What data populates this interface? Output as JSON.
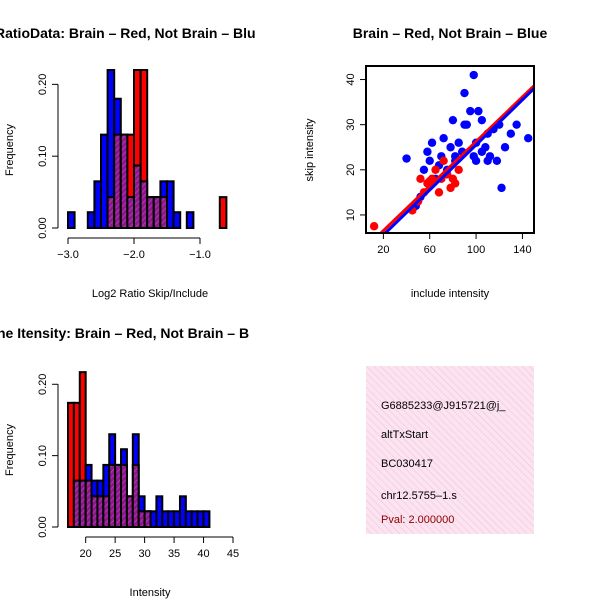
{
  "colors": {
    "red": "#ff0000",
    "blue": "#0000ff",
    "purple": "#a020f0",
    "black": "#000000",
    "pink": "#ffe4f0"
  },
  "chart_data": [
    {
      "id": "ratio-hist",
      "type": "bar",
      "title": "RatioData: Brain – Red, Not Brain – Blu",
      "xlabel": "Log2 Ratio Skip/Include",
      "ylabel": "Frequency",
      "xlim": [
        -3.0,
        -0.5
      ],
      "ylim": [
        0,
        0.22
      ],
      "xticks": [
        -3.0,
        -2.0,
        -1.0
      ],
      "xtick_labels": [
        "−3.0",
        "−2.0",
        "−1.0"
      ],
      "yticks": [
        0.0,
        0.1,
        0.2
      ],
      "ytick_labels": [
        "0.00",
        "0.10",
        "0.20"
      ],
      "bin_start": -3.0,
      "bin_width": 0.1,
      "series": [
        {
          "name": "Brain",
          "color": "red",
          "values": [
            0,
            0,
            0,
            0,
            0,
            0,
            0.043,
            0.13,
            0.13,
            0.13,
            0.22,
            0.22,
            0.043,
            0.043,
            0.043,
            0,
            0,
            0,
            0,
            0,
            0,
            0,
            0,
            0.043,
            0
          ]
        },
        {
          "name": "Not Brain",
          "color": "blue",
          "values": [
            0.022,
            0,
            0,
            0.022,
            0.065,
            0.13,
            0.22,
            0.18,
            0.13,
            0.043,
            0.087,
            0.065,
            0.043,
            0.043,
            0.065,
            0.065,
            0.022,
            0,
            0.022,
            0,
            0,
            0,
            0,
            0,
            0
          ]
        }
      ]
    },
    {
      "id": "scatter",
      "type": "scatter",
      "title": "Brain – Red, Not Brain – Blue",
      "xlabel": "include intensity",
      "ylabel": "skip intensity",
      "xlim": [
        5,
        150
      ],
      "ylim": [
        6,
        43
      ],
      "xticks": [
        20,
        60,
        100,
        140
      ],
      "xtick_labels": [
        "20",
        "60",
        "100",
        "140"
      ],
      "yticks": [
        10,
        20,
        30,
        40
      ],
      "ytick_labels": [
        "10",
        "20",
        "30",
        "40"
      ],
      "series": [
        {
          "name": "Brain",
          "color": "red",
          "x": [
            12,
            45,
            50,
            52,
            55,
            58,
            60,
            62,
            65,
            68,
            70,
            72,
            75,
            78,
            80,
            82,
            85
          ],
          "y": [
            7.5,
            11,
            13,
            18,
            15,
            17,
            17.5,
            18,
            20,
            15,
            18,
            22,
            19,
            16,
            18,
            17,
            20
          ]
        },
        {
          "name": "Not Brain",
          "color": "blue",
          "x": [
            40,
            48,
            52,
            55,
            58,
            60,
            62,
            65,
            68,
            70,
            72,
            75,
            78,
            80,
            82,
            85,
            88,
            90,
            92,
            95,
            98,
            100,
            102,
            105,
            108,
            110,
            112,
            115,
            118,
            120,
            122,
            125,
            130,
            135,
            145,
            98,
            100,
            105,
            110,
            90,
            82,
            75
          ],
          "y": [
            22.5,
            12,
            14,
            20,
            24,
            22,
            26,
            18,
            21,
            23,
            27,
            20,
            25,
            31,
            23,
            26,
            24,
            37,
            30,
            33,
            41,
            26,
            33,
            31,
            25,
            28,
            23,
            29,
            22,
            30,
            16,
            25,
            28,
            30,
            27,
            23,
            22,
            24,
            22,
            30,
            22,
            19
          ]
        }
      ],
      "fit_lines": [
        {
          "name": "Brain fit",
          "color": "red",
          "x": [
            5,
            150
          ],
          "y": [
            2.8,
            38.6
          ]
        },
        {
          "name": "Not Brain fit",
          "color": "blue",
          "x": [
            5,
            150
          ],
          "y": [
            1.8,
            38.0
          ]
        }
      ]
    },
    {
      "id": "intensity-hist",
      "type": "bar",
      "title": "Exon Intensity: Brain – Red, Not Brain – B",
      "title_visible": "ne Itensity: Brain – Red, Not Brain – B",
      "xlabel": "Intensity",
      "ylabel": "Frequency",
      "xlim": [
        17,
        45
      ],
      "ylim": [
        0,
        0.22
      ],
      "xticks": [
        20,
        25,
        30,
        35,
        40,
        45
      ],
      "xtick_labels": [
        "20",
        "25",
        "30",
        "35",
        "40",
        "45"
      ],
      "yticks": [
        0.0,
        0.1,
        0.2
      ],
      "ytick_labels": [
        "0.00",
        "0.10",
        "0.20"
      ],
      "bin_start": 17,
      "bin_width": 1,
      "series": [
        {
          "name": "Brain",
          "color": "red",
          "values": [
            0.174,
            0.174,
            0.217,
            0.065,
            0.043,
            0.043,
            0.043,
            0.087,
            0.087,
            0.087,
            0.043,
            0.087,
            0.022,
            0.022,
            0,
            0,
            0,
            0,
            0,
            0,
            0,
            0,
            0,
            0,
            0,
            0
          ]
        },
        {
          "name": "Not Brain",
          "color": "blue",
          "values": [
            0,
            0.065,
            0.065,
            0.087,
            0.065,
            0.065,
            0.087,
            0.13,
            0.087,
            0.109,
            0.043,
            0.13,
            0.043,
            0.022,
            0.022,
            0.043,
            0.022,
            0.022,
            0.022,
            0.043,
            0.022,
            0.022,
            0.022,
            0.022,
            0,
            0
          ]
        }
      ]
    }
  ],
  "info": {
    "id": "G6885233@J915721@j_",
    "type": "altTxStart",
    "accession": "BC030417",
    "location": "chr12.5755–1.s",
    "pval": "Pval: 2.000000"
  }
}
